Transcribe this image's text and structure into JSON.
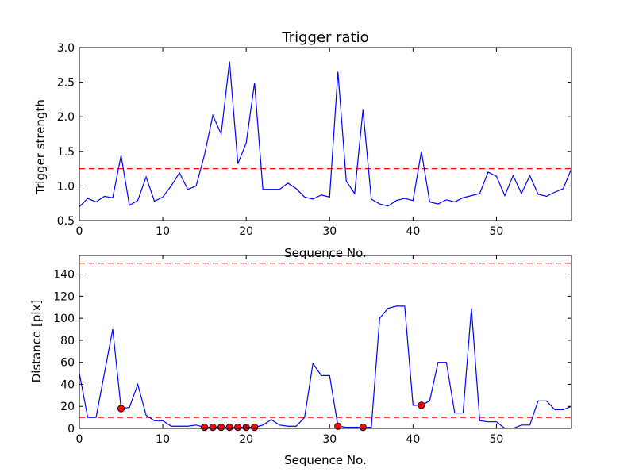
{
  "chart_data": [
    {
      "type": "line",
      "title": "Trigger ratio",
      "xlabel": "Sequence No.",
      "ylabel": "Trigger strength",
      "xlim": [
        0,
        59
      ],
      "ylim": [
        0.5,
        3.0
      ],
      "xticks": [
        0,
        10,
        20,
        30,
        40,
        50
      ],
      "yticks": [
        0.5,
        1.0,
        1.5,
        2.0,
        2.5,
        3.0
      ],
      "tick_labels_x": [
        "0",
        "10",
        "20",
        "30",
        "40",
        "50"
      ],
      "tick_labels_y": [
        "0.5",
        "1.0",
        "1.5",
        "2.0",
        "2.5",
        "3.0"
      ],
      "grid": false,
      "line_color": "#0000ff",
      "threshold_color": "#ff0000",
      "threshold": 1.25,
      "x": [
        0,
        1,
        2,
        3,
        4,
        5,
        6,
        7,
        8,
        9,
        10,
        11,
        12,
        13,
        14,
        15,
        16,
        17,
        18,
        19,
        20,
        21,
        22,
        23,
        24,
        25,
        26,
        27,
        28,
        29,
        30,
        31,
        32,
        33,
        34,
        35,
        36,
        37,
        38,
        39,
        40,
        41,
        42,
        43,
        44,
        45,
        46,
        47,
        48,
        49,
        50,
        51,
        52,
        53,
        54,
        55,
        56,
        57,
        58,
        59
      ],
      "values": [
        0.7,
        0.82,
        0.77,
        0.85,
        0.83,
        1.44,
        0.72,
        0.79,
        1.13,
        0.78,
        0.84,
        1.0,
        1.19,
        0.95,
        1.0,
        1.45,
        2.02,
        1.75,
        2.8,
        1.32,
        1.62,
        2.49,
        0.95,
        0.95,
        0.95,
        1.04,
        0.96,
        0.84,
        0.81,
        0.87,
        0.84,
        2.65,
        1.07,
        0.89,
        2.1,
        0.81,
        0.74,
        0.71,
        0.79,
        0.82,
        0.79,
        1.5,
        0.77,
        0.74,
        0.8,
        0.77,
        0.83,
        0.86,
        0.89,
        1.2,
        1.14,
        0.86,
        1.15,
        0.89,
        1.15,
        0.88,
        0.85,
        0.91,
        0.96,
        1.25
      ]
    },
    {
      "type": "line",
      "title": "",
      "xlabel": "Sequence No.",
      "ylabel": "Distance [pix]",
      "xlim": [
        0,
        59
      ],
      "ylim": [
        0,
        157
      ],
      "xticks": [
        0,
        10,
        20,
        30,
        40,
        50
      ],
      "yticks": [
        0,
        20,
        40,
        60,
        80,
        100,
        120,
        140
      ],
      "tick_labels_x": [
        "0",
        "10",
        "20",
        "30",
        "40",
        "50"
      ],
      "tick_labels_y": [
        "0",
        "20",
        "40",
        "60",
        "80",
        "100",
        "120",
        "140"
      ],
      "grid": false,
      "line_color": "#0000ff",
      "threshold_color": "#ff0000",
      "marker_color": "#ff0000",
      "thresholds": [
        10,
        150
      ],
      "x": [
        0,
        1,
        2,
        3,
        4,
        5,
        6,
        7,
        8,
        9,
        10,
        11,
        12,
        13,
        14,
        15,
        16,
        17,
        18,
        19,
        20,
        21,
        22,
        23,
        24,
        25,
        26,
        27,
        28,
        29,
        30,
        31,
        32,
        33,
        34,
        35,
        36,
        37,
        38,
        39,
        40,
        41,
        42,
        43,
        44,
        45,
        46,
        47,
        48,
        49,
        50,
        51,
        52,
        53,
        54,
        55,
        56,
        57,
        58,
        59
      ],
      "values": [
        50,
        10,
        10,
        50,
        90,
        18,
        19,
        40,
        12,
        7,
        7,
        2,
        2,
        2,
        3,
        1,
        1,
        1,
        1,
        1,
        1,
        1,
        3,
        8,
        3,
        2,
        2,
        10,
        59,
        48,
        48,
        2,
        1,
        1,
        1,
        1,
        100,
        109,
        111,
        111,
        21,
        21,
        25,
        60,
        60,
        14,
        14,
        109,
        7,
        6,
        6,
        0,
        0,
        3,
        3,
        25,
        25,
        17,
        17,
        20
      ],
      "markers": [
        {
          "x": 5,
          "y": 18
        },
        {
          "x": 15,
          "y": 1
        },
        {
          "x": 16,
          "y": 1
        },
        {
          "x": 17,
          "y": 1
        },
        {
          "x": 18,
          "y": 1
        },
        {
          "x": 19,
          "y": 1
        },
        {
          "x": 20,
          "y": 1
        },
        {
          "x": 21,
          "y": 1
        },
        {
          "x": 31,
          "y": 2
        },
        {
          "x": 34,
          "y": 1
        },
        {
          "x": 41,
          "y": 21
        }
      ]
    }
  ]
}
